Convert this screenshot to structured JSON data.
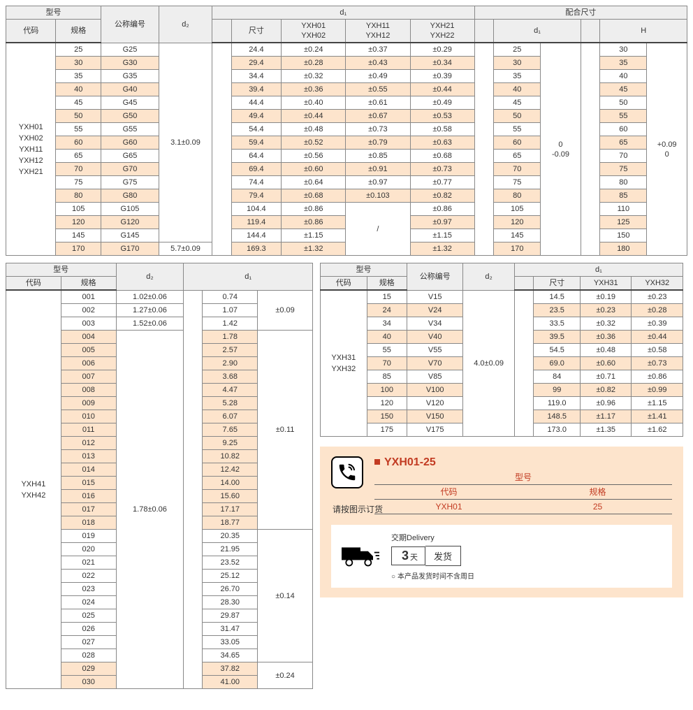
{
  "colors": {
    "alt_row_bg": "#fde4cc",
    "header_bg": "#eeeeee",
    "border": "#888888",
    "accent": "#c23b22"
  },
  "t1": {
    "h_model": "型号",
    "h_code": "代码",
    "h_spec": "规格",
    "h_nominal": "公称编号",
    "h_d2": "d₂",
    "h_d1": "d₁",
    "h_fit": "配合尺寸",
    "h_size": "尺寸",
    "h_yxh01": "YXH01\nYXH02",
    "h_yxh11": "YXH11\nYXH12",
    "h_yxh21": "YXH21\nYXH22",
    "h_H": "H",
    "code_label": "YXH01\nYXH02\nYXH11\nYXH12\nYXH21",
    "d2_a": "3.1±0.09",
    "d2_b": "5.7±0.09",
    "fit_d1_tol": "0\n-0.09",
    "fit_H_tol": "+0.09\n0",
    "slash": "/",
    "rows": [
      {
        "spec": "25",
        "nom": "G25",
        "size": "24.4",
        "c1": "±0.24",
        "c2": "±0.37",
        "c3": "±0.29",
        "fd1": "25",
        "fH": "30",
        "alt": false
      },
      {
        "spec": "30",
        "nom": "G30",
        "size": "29.4",
        "c1": "±0.28",
        "c2": "±0.43",
        "c3": "±0.34",
        "fd1": "30",
        "fH": "35",
        "alt": true
      },
      {
        "spec": "35",
        "nom": "G35",
        "size": "34.4",
        "c1": "±0.32",
        "c2": "±0.49",
        "c3": "±0.39",
        "fd1": "35",
        "fH": "40",
        "alt": false
      },
      {
        "spec": "40",
        "nom": "G40",
        "size": "39.4",
        "c1": "±0.36",
        "c2": "±0.55",
        "c3": "±0.44",
        "fd1": "40",
        "fH": "45",
        "alt": true
      },
      {
        "spec": "45",
        "nom": "G45",
        "size": "44.4",
        "c1": "±0.40",
        "c2": "±0.61",
        "c3": "±0.49",
        "fd1": "45",
        "fH": "50",
        "alt": false
      },
      {
        "spec": "50",
        "nom": "G50",
        "size": "49.4",
        "c1": "±0.44",
        "c2": "±0.67",
        "c3": "±0.53",
        "fd1": "50",
        "fH": "55",
        "alt": true
      },
      {
        "spec": "55",
        "nom": "G55",
        "size": "54.4",
        "c1": "±0.48",
        "c2": "±0.73",
        "c3": "±0.58",
        "fd1": "55",
        "fH": "60",
        "alt": false
      },
      {
        "spec": "60",
        "nom": "G60",
        "size": "59.4",
        "c1": "±0.52",
        "c2": "±0.79",
        "c3": "±0.63",
        "fd1": "60",
        "fH": "65",
        "alt": true
      },
      {
        "spec": "65",
        "nom": "G65",
        "size": "64.4",
        "c1": "±0.56",
        "c2": "±0.85",
        "c3": "±0.68",
        "fd1": "65",
        "fH": "70",
        "alt": false
      },
      {
        "spec": "70",
        "nom": "G70",
        "size": "69.4",
        "c1": "±0.60",
        "c2": "±0.91",
        "c3": "±0.73",
        "fd1": "70",
        "fH": "75",
        "alt": true
      },
      {
        "spec": "75",
        "nom": "G75",
        "size": "74.4",
        "c1": "±0.64",
        "c2": "±0.97",
        "c3": "±0.77",
        "fd1": "75",
        "fH": "80",
        "alt": false
      },
      {
        "spec": "80",
        "nom": "G80",
        "size": "79.4",
        "c1": "±0.68",
        "c2": "±0.103",
        "c3": "±0.82",
        "fd1": "80",
        "fH": "85",
        "alt": true
      },
      {
        "spec": "105",
        "nom": "G105",
        "size": "104.4",
        "c1": "±0.86",
        "c2": "",
        "c3": "±0.86",
        "fd1": "105",
        "fH": "110",
        "alt": false
      },
      {
        "spec": "120",
        "nom": "G120",
        "size": "119.4",
        "c1": "±0.86",
        "c2": "",
        "c3": "±0.97",
        "fd1": "120",
        "fH": "125",
        "alt": true
      },
      {
        "spec": "145",
        "nom": "G145",
        "size": "144.4",
        "c1": "±1.15",
        "c2": "",
        "c3": "±1.15",
        "fd1": "145",
        "fH": "150",
        "alt": false
      },
      {
        "spec": "170",
        "nom": "G170",
        "size": "169.3",
        "c1": "±1.32",
        "c2": "",
        "c3": "±1.32",
        "fd1": "170",
        "fH": "180",
        "alt": true
      }
    ]
  },
  "t2": {
    "h_model": "型号",
    "h_code": "代码",
    "h_spec": "规格",
    "h_d2": "d₂",
    "h_d1": "d₁",
    "code_label": "YXH41\nYXH42",
    "d2_a1": "1.02±0.06",
    "d2_a2": "1.27±0.06",
    "d2_a3": "1.52±0.06",
    "d2_b": "1.78±0.06",
    "tol_a": "±0.09",
    "tol_b": "±0.11",
    "tol_c": "±0.14",
    "tol_d": "±0.24",
    "rows": [
      {
        "spec": "001",
        "size": "0.74",
        "alt": false,
        "grp": "a"
      },
      {
        "spec": "002",
        "size": "1.07",
        "alt": false,
        "grp": "a"
      },
      {
        "spec": "003",
        "size": "1.42",
        "alt": false,
        "grp": "a"
      },
      {
        "spec": "004",
        "size": "1.78",
        "alt": true,
        "grp": "b"
      },
      {
        "spec": "005",
        "size": "2.57",
        "alt": true,
        "grp": "b"
      },
      {
        "spec": "006",
        "size": "2.90",
        "alt": true,
        "grp": "b"
      },
      {
        "spec": "007",
        "size": "3.68",
        "alt": true,
        "grp": "b"
      },
      {
        "spec": "008",
        "size": "4.47",
        "alt": true,
        "grp": "b"
      },
      {
        "spec": "009",
        "size": "5.28",
        "alt": true,
        "grp": "b"
      },
      {
        "spec": "010",
        "size": "6.07",
        "alt": true,
        "grp": "b"
      },
      {
        "spec": "011",
        "size": "7.65",
        "alt": true,
        "grp": "b"
      },
      {
        "spec": "012",
        "size": "9.25",
        "alt": true,
        "grp": "b"
      },
      {
        "spec": "013",
        "size": "10.82",
        "alt": true,
        "grp": "b"
      },
      {
        "spec": "014",
        "size": "12.42",
        "alt": true,
        "grp": "b"
      },
      {
        "spec": "015",
        "size": "14.00",
        "alt": true,
        "grp": "b"
      },
      {
        "spec": "016",
        "size": "15.60",
        "alt": true,
        "grp": "b"
      },
      {
        "spec": "017",
        "size": "17.17",
        "alt": true,
        "grp": "b"
      },
      {
        "spec": "018",
        "size": "18.77",
        "alt": true,
        "grp": "b"
      },
      {
        "spec": "019",
        "size": "20.35",
        "alt": false,
        "grp": "c"
      },
      {
        "spec": "020",
        "size": "21.95",
        "alt": false,
        "grp": "c"
      },
      {
        "spec": "021",
        "size": "23.52",
        "alt": false,
        "grp": "c"
      },
      {
        "spec": "022",
        "size": "25.12",
        "alt": false,
        "grp": "c"
      },
      {
        "spec": "023",
        "size": "26.70",
        "alt": false,
        "grp": "c"
      },
      {
        "spec": "024",
        "size": "28.30",
        "alt": false,
        "grp": "c"
      },
      {
        "spec": "025",
        "size": "29.87",
        "alt": false,
        "grp": "c"
      },
      {
        "spec": "026",
        "size": "31.47",
        "alt": false,
        "grp": "c"
      },
      {
        "spec": "027",
        "size": "33.05",
        "alt": false,
        "grp": "c"
      },
      {
        "spec": "028",
        "size": "34.65",
        "alt": false,
        "grp": "c"
      },
      {
        "spec": "029",
        "size": "37.82",
        "alt": true,
        "grp": "d"
      },
      {
        "spec": "030",
        "size": "41.00",
        "alt": true,
        "grp": "d"
      }
    ]
  },
  "t3": {
    "h_model": "型号",
    "h_code": "代码",
    "h_spec": "规格",
    "h_nominal": "公称编号",
    "h_d2": "d₂",
    "h_d1": "d₁",
    "h_size": "尺寸",
    "h_y31": "YXH31",
    "h_y32": "YXH32",
    "code_label": "YXH31\nYXH32",
    "d2_v": "4.0±0.09",
    "rows": [
      {
        "spec": "15",
        "nom": "V15",
        "size": "14.5",
        "c1": "±0.19",
        "c2": "±0.23",
        "alt": false
      },
      {
        "spec": "24",
        "nom": "V24",
        "size": "23.5",
        "c1": "±0.23",
        "c2": "±0.28",
        "alt": true
      },
      {
        "spec": "34",
        "nom": "V34",
        "size": "33.5",
        "c1": "±0.32",
        "c2": "±0.39",
        "alt": false
      },
      {
        "spec": "40",
        "nom": "V40",
        "size": "39.5",
        "c1": "±0.36",
        "c2": "±0.44",
        "alt": true
      },
      {
        "spec": "55",
        "nom": "V55",
        "size": "54.5",
        "c1": "±0.48",
        "c2": "±0.58",
        "alt": false
      },
      {
        "spec": "70",
        "nom": "V70",
        "size": "69.0",
        "c1": "±0.60",
        "c2": "±0.73",
        "alt": true
      },
      {
        "spec": "85",
        "nom": "V85",
        "size": "84",
        "c1": "±0.71",
        "c2": "±0.86",
        "alt": false
      },
      {
        "spec": "100",
        "nom": "V100",
        "size": "99",
        "c1": "±0.82",
        "c2": "±0.99",
        "alt": true
      },
      {
        "spec": "120",
        "nom": "V120",
        "size": "119.0",
        "c1": "±0.96",
        "c2": "±1.15",
        "alt": false
      },
      {
        "spec": "150",
        "nom": "V150",
        "size": "148.5",
        "c1": "±1.17",
        "c2": "±1.41",
        "alt": true
      },
      {
        "spec": "175",
        "nom": "V175",
        "size": "173.0",
        "c1": "±1.35",
        "c2": "±1.62",
        "alt": false
      }
    ]
  },
  "order": {
    "example_code": "YXH01-25",
    "label_model": "型号",
    "label_code": "代码",
    "label_spec": "规格",
    "val_code": "YXH01",
    "val_spec": "25",
    "hint": "请按图示订货",
    "delivery_title": "交期Delivery",
    "days": "3",
    "days_unit": "天",
    "ship_label": "发货",
    "note": "本产品发货时间不含周日"
  }
}
